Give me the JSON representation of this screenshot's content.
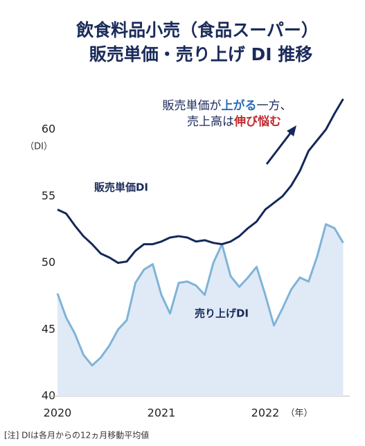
{
  "chart_data": {
    "type": "line",
    "title": [
      "飲食料品小売（食品スーパー）",
      "販売単価・売り上げ DI 推移"
    ],
    "annotation": [
      [
        "販売単価が",
        "上がる",
        "一方、"
      ],
      [
        "売上高は",
        "伸び悩む"
      ]
    ],
    "annotation_colors": [
      [
        "#1a2a5a",
        "#2a6db8",
        "#1a2a5a"
      ],
      [
        "#1a2a5a",
        "#c0282d"
      ]
    ],
    "y_unit": "（DI）",
    "x_unit": "（年）",
    "footnote": "[注] DIは各月からの12ヵ月移動平均値",
    "categories": [
      "2020",
      null,
      null,
      null,
      null,
      null,
      null,
      null,
      null,
      null,
      null,
      null,
      "2021",
      null,
      null,
      null,
      null,
      null,
      null,
      null,
      null,
      null,
      null,
      null,
      "2022",
      null,
      null,
      null,
      null,
      null,
      null,
      null,
      null,
      null
    ],
    "ylim": [
      40,
      62.5
    ],
    "yticks": [
      40,
      45,
      50,
      55,
      60
    ],
    "series": [
      {
        "name": "販売単価DI",
        "color": "#14285a",
        "fill": false,
        "values": [
          54.0,
          53.7,
          52.8,
          52.0,
          51.4,
          50.7,
          50.4,
          50.0,
          50.1,
          50.9,
          51.4,
          51.4,
          51.6,
          51.9,
          52.0,
          51.9,
          51.6,
          51.7,
          51.5,
          51.4,
          51.6,
          52.0,
          52.6,
          53.1,
          54.0,
          54.5,
          55.0,
          55.8,
          56.9,
          58.4,
          59.2,
          60.0,
          61.2,
          62.3
        ]
      },
      {
        "name": "売り上げDI",
        "color": "#7fb3d8",
        "fill": true,
        "values": [
          47.7,
          45.9,
          44.7,
          43.1,
          42.3,
          42.9,
          43.8,
          45.0,
          45.7,
          48.5,
          49.5,
          49.9,
          47.6,
          46.2,
          48.5,
          48.6,
          48.3,
          47.6,
          50.0,
          51.4,
          49.0,
          48.2,
          48.9,
          49.7,
          47.6,
          45.3,
          46.6,
          48.0,
          48.9,
          48.6,
          50.5,
          52.9,
          52.6,
          51.5
        ]
      }
    ]
  }
}
